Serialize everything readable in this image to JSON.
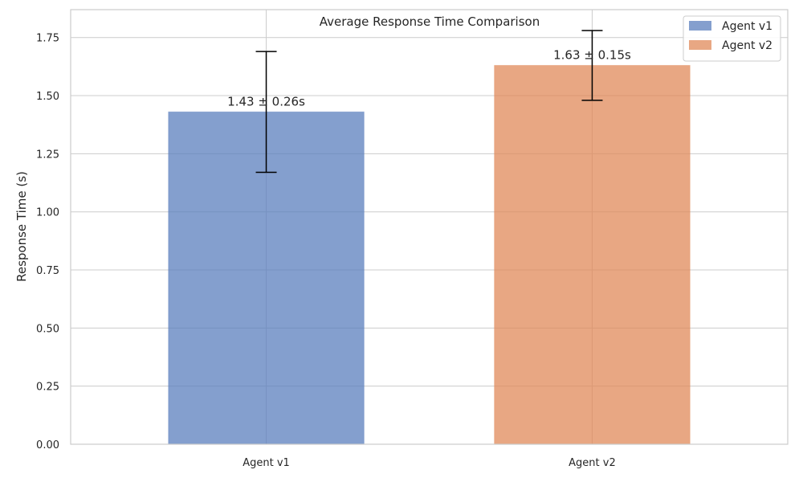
{
  "chart_data": {
    "type": "bar",
    "title": "Average Response Time Comparison",
    "xlabel": "",
    "ylabel": "Response Time (s)",
    "categories": [
      "Agent v1",
      "Agent v2"
    ],
    "values": [
      1.43,
      1.63
    ],
    "errors": [
      0.26,
      0.15
    ],
    "data_labels": [
      "1.43 ± 0.26s",
      "1.63 ± 0.15s"
    ],
    "ylim": [
      0,
      1.87
    ],
    "yticks": [
      0.0,
      0.25,
      0.5,
      0.75,
      1.0,
      1.25,
      1.5,
      1.75
    ],
    "ytick_labels": [
      "0.00",
      "0.25",
      "0.50",
      "0.75",
      "1.00",
      "1.25",
      "1.50",
      "1.75"
    ],
    "grid": true,
    "legend": {
      "placement": "top-right",
      "entries": [
        "Agent v1",
        "Agent v2"
      ]
    },
    "colors": [
      "#5b7fbd",
      "#e0895a"
    ]
  }
}
